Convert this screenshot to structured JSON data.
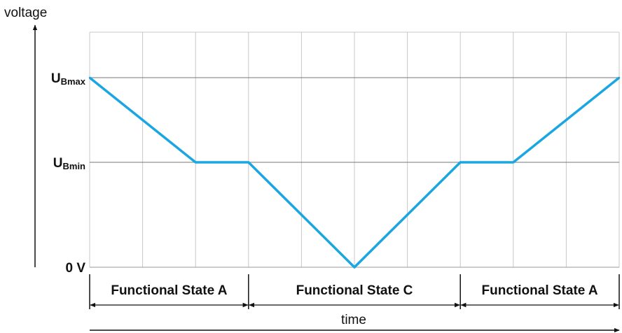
{
  "chart_data": {
    "type": "line",
    "ylabel": "voltage",
    "xlabel": "time",
    "y_levels": [
      {
        "id": "ubmax",
        "main": "U",
        "sub": "Bmax"
      },
      {
        "id": "ubmin",
        "main": "U",
        "sub": "Bmin"
      },
      {
        "id": "zero",
        "main": "0 V",
        "sub": ""
      }
    ],
    "x_divisions": 10,
    "series": [
      {
        "color": "#1aa6e0",
        "points": [
          {
            "x": 0,
            "y": "ubmax"
          },
          {
            "x": 2,
            "y": "ubmin"
          },
          {
            "x": 3,
            "y": "ubmin"
          },
          {
            "x": 5,
            "y": "zero"
          },
          {
            "x": 7,
            "y": "ubmin"
          },
          {
            "x": 8,
            "y": "ubmin"
          },
          {
            "x": 10,
            "y": "ubmax"
          }
        ]
      }
    ],
    "grid": true,
    "states": [
      {
        "label": "Functional State A",
        "from": 0,
        "to": 3
      },
      {
        "label": "Functional State C",
        "from": 3,
        "to": 7
      },
      {
        "label": "Functional State A",
        "from": 7,
        "to": 10
      }
    ]
  }
}
